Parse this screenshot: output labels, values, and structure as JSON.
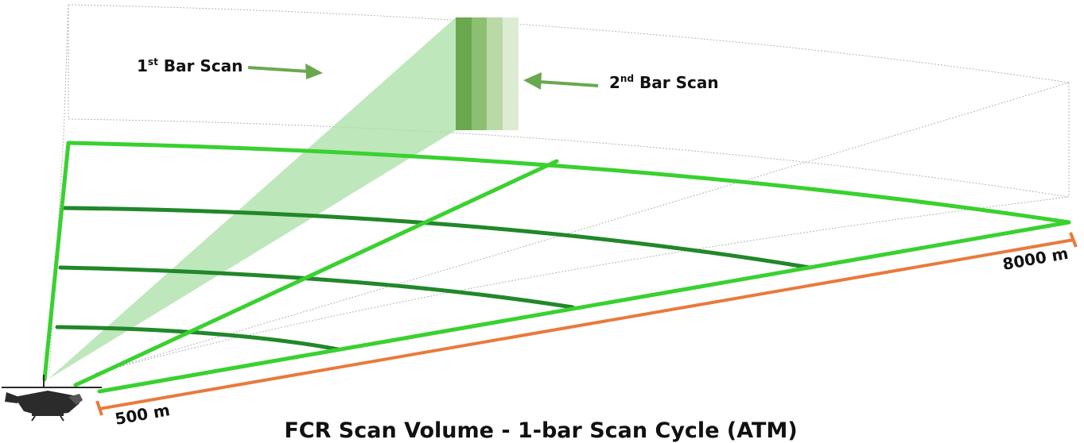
{
  "labels": {
    "first_bar_num": "1",
    "first_bar_sup": "st",
    "first_bar_text": " Bar Scan",
    "second_bar_num": "2",
    "second_bar_sup": "nd",
    "second_bar_text": " Bar Scan",
    "range_max": "8000 m",
    "range_min": "500 m"
  },
  "caption": "FCR Scan Volume - 1-bar Scan Cycle (ATM)",
  "colors": {
    "grid_bright": "#39d12f",
    "grid_dark": "#22872a",
    "beam": "#a8dfa4",
    "bar_dark": "#6aa84f",
    "bar_mid": "#8cbf72",
    "bar_light": "#b9d9a6",
    "bar_lighter": "#dcecd2",
    "arrow": "#6aa84f",
    "range_line": "#e87a3c"
  },
  "icons": {
    "platform": "helicopter-icon"
  }
}
